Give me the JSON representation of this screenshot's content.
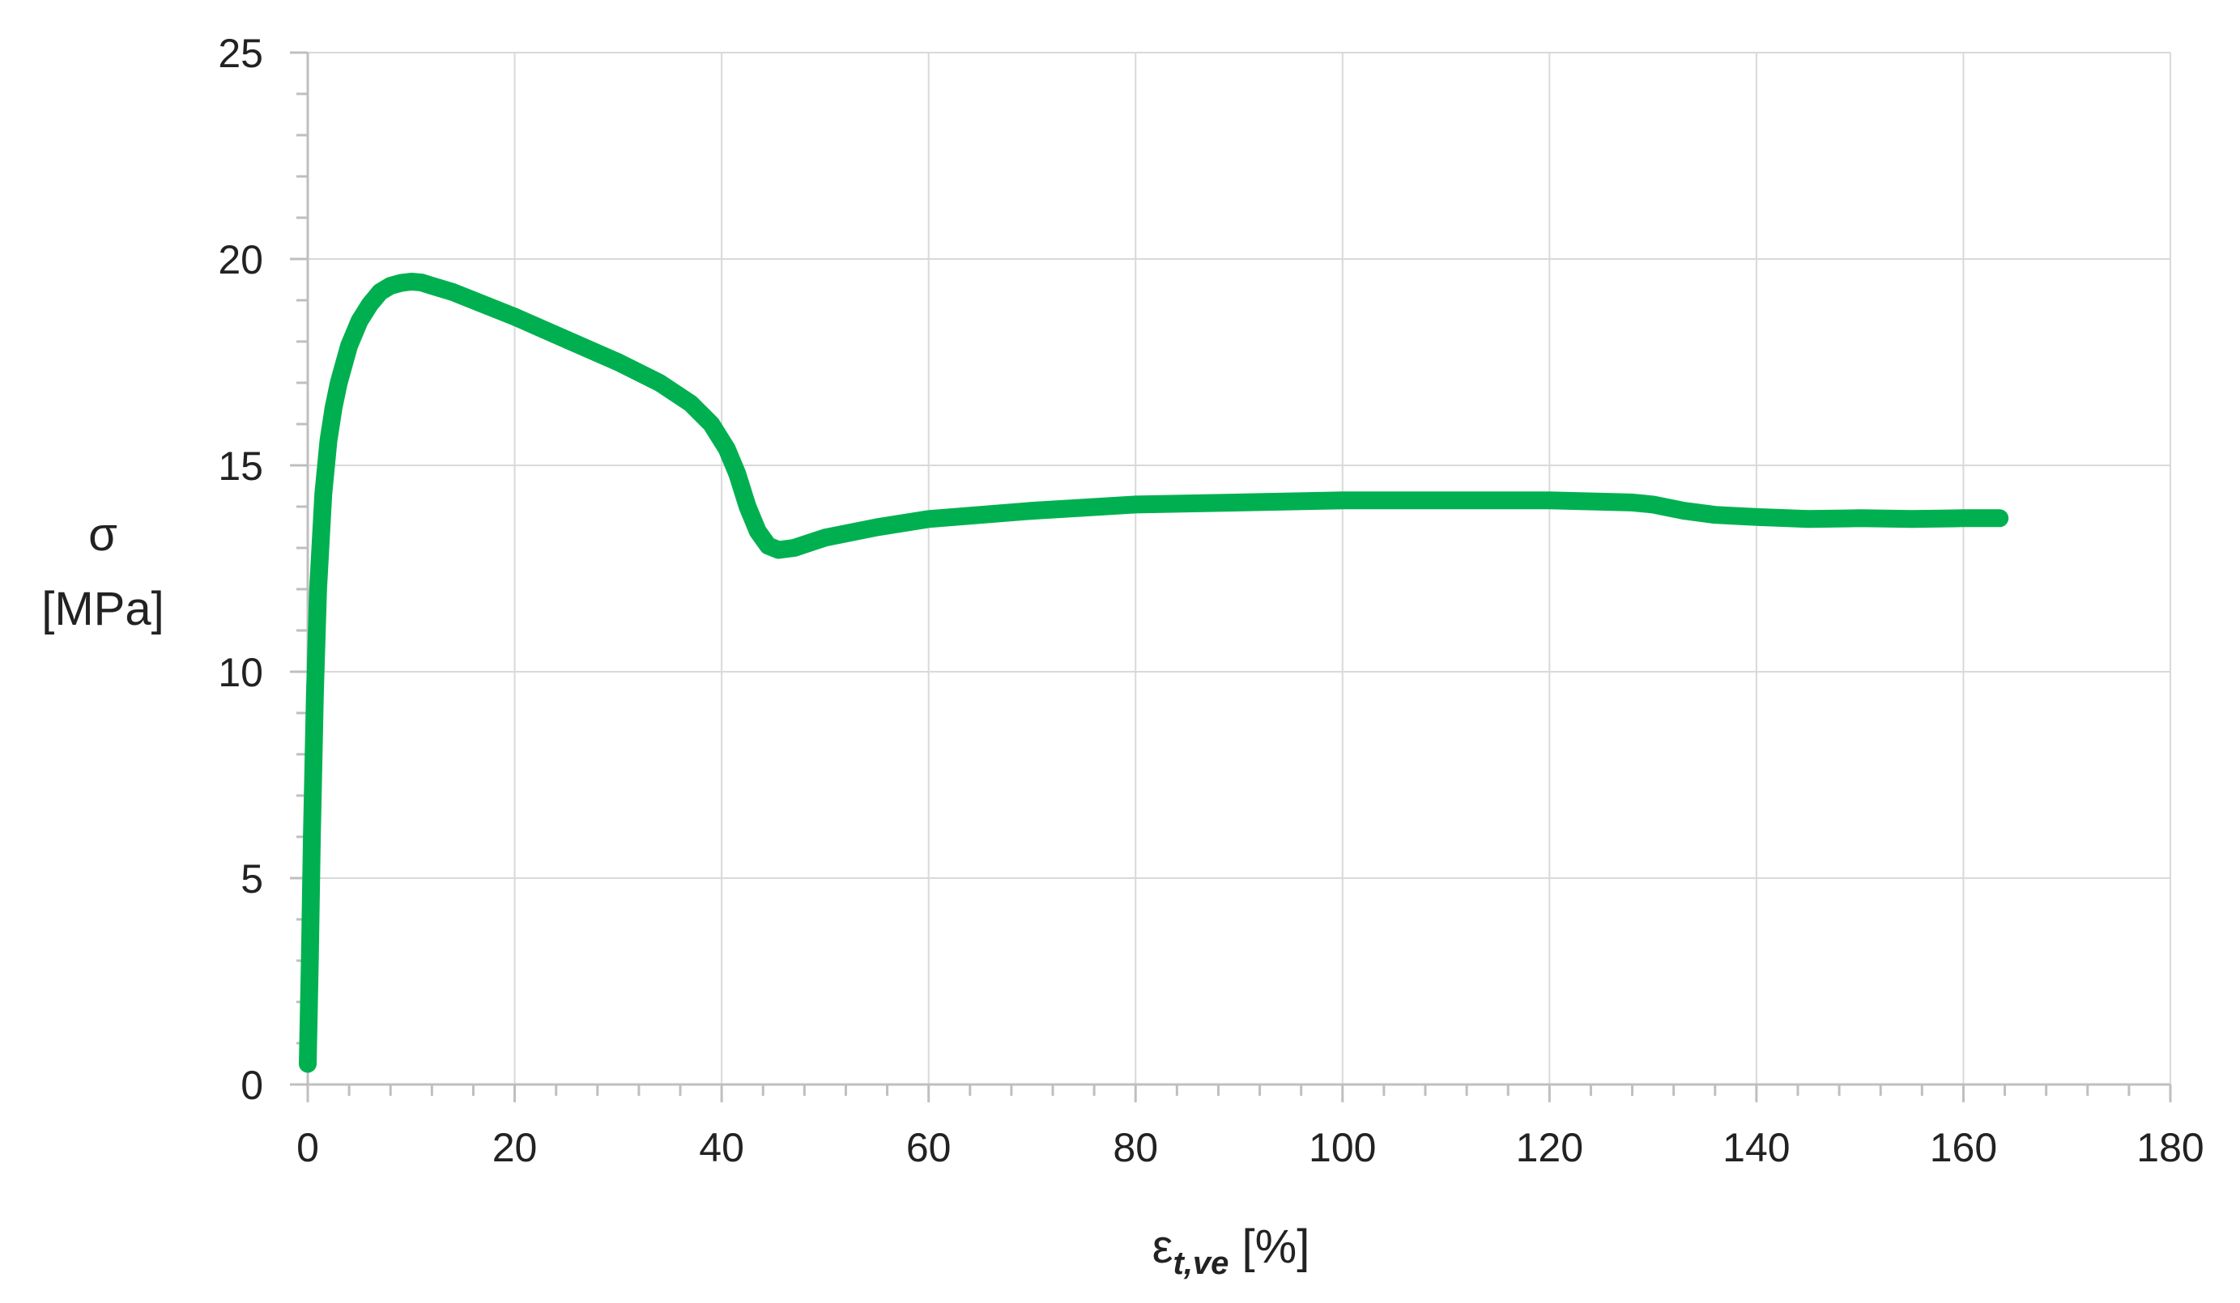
{
  "chart_data": {
    "type": "line",
    "title": "",
    "ylabel": {
      "symbol": "σ",
      "unit": "[MPa]"
    },
    "xlabel": {
      "symbol": "ε",
      "subscript": "t,ve",
      "unit": " [%]"
    },
    "xlim": [
      0,
      180
    ],
    "ylim": [
      0,
      25
    ],
    "x_ticks": [
      0,
      20,
      40,
      60,
      80,
      100,
      120,
      140,
      160,
      180
    ],
    "y_ticks": [
      0,
      5,
      10,
      15,
      20,
      25
    ],
    "x_tick_labels": [
      "0",
      "20",
      "40",
      "60",
      "80",
      "100",
      "120",
      "140",
      "160",
      "180"
    ],
    "y_tick_labels": [
      "0",
      "5",
      "10",
      "15",
      "20",
      "25"
    ],
    "grid": true,
    "legend": "none",
    "colors": {
      "series": "#00B050",
      "grid": "#d9d9d9",
      "axis": "#bfbfbf",
      "text": "#222222"
    },
    "series": [
      {
        "x": [
          0.0,
          0.2,
          0.4,
          0.7,
          1.0,
          1.5,
          2.0,
          2.5,
          3.0,
          4.0,
          5.0,
          6.0,
          7.0,
          8.0,
          9.0,
          10.0,
          11.0,
          12.0,
          14.0,
          16.0,
          20.0,
          25.0,
          30.0,
          34.0,
          37.0,
          39.0,
          40.5,
          41.5,
          42.5,
          43.5,
          44.5,
          45.5,
          47.0,
          50.0,
          55.0,
          60.0,
          70.0,
          80.0,
          90.0,
          100.0,
          110.0,
          120.0,
          128.0,
          130.0,
          133.0,
          136.0,
          140.0,
          145.0,
          150.0,
          155.0,
          160.0,
          163.5
        ],
        "y": [
          0.5,
          3.0,
          6.0,
          9.5,
          12.0,
          14.3,
          15.6,
          16.4,
          17.0,
          17.9,
          18.5,
          18.9,
          19.2,
          19.35,
          19.42,
          19.45,
          19.43,
          19.35,
          19.2,
          19.0,
          18.6,
          18.05,
          17.5,
          17.0,
          16.5,
          16.0,
          15.4,
          14.8,
          14.0,
          13.4,
          13.05,
          12.95,
          13.0,
          13.25,
          13.5,
          13.7,
          13.9,
          14.05,
          14.1,
          14.15,
          14.15,
          14.15,
          14.1,
          14.05,
          13.9,
          13.8,
          13.75,
          13.7,
          13.72,
          13.7,
          13.72,
          13.72
        ]
      }
    ]
  }
}
